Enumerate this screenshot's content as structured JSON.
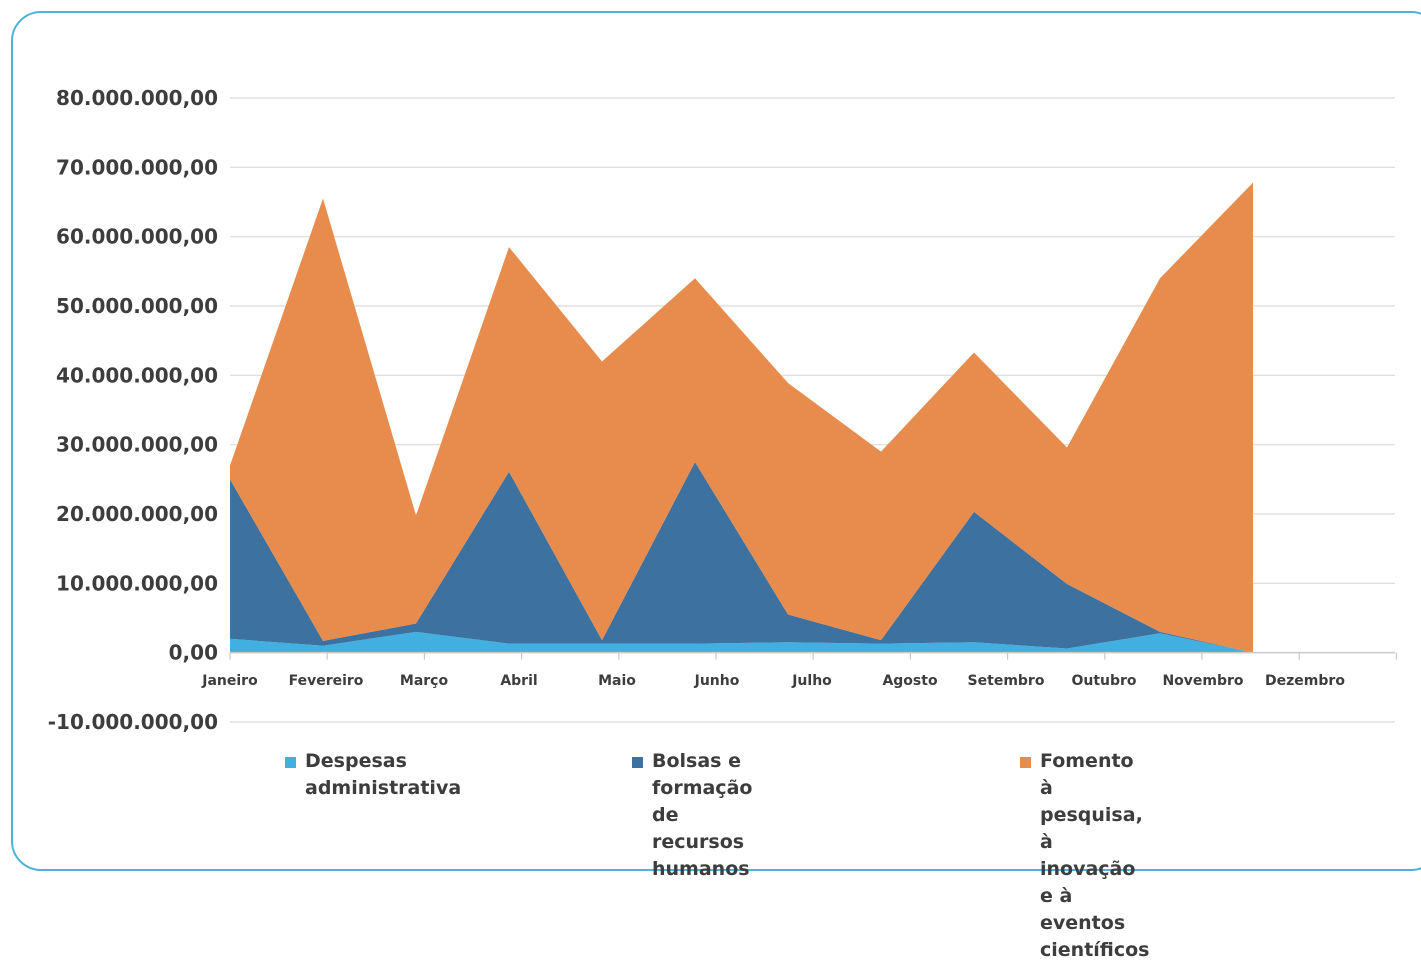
{
  "chart_data": {
    "type": "area",
    "stacked": true,
    "categories": [
      "Janeiro",
      "Fevereiro",
      "Março",
      "Abril",
      "Maio",
      "Junho",
      "Julho",
      "Agosto",
      "Setembro",
      "Outubro",
      "Novembro",
      "Dezembro"
    ],
    "y_ticks": [
      "80.000.000,00",
      "70.000.000,00",
      "60.000.000,00",
      "50.000.000,00",
      "40.000.000,00",
      "30.000.000,00",
      "20.000.000,00",
      "10.000.000,00",
      "0,00",
      "-10.000.000,00"
    ],
    "ylim": [
      -10000000,
      80000000
    ],
    "grid": true,
    "legend_position": "bottom",
    "series": [
      {
        "name": "Despesas administrativa",
        "color": "#41afe0",
        "values": [
          2000000,
          1000000,
          3000000,
          1300000,
          1300000,
          1300000,
          1500000,
          1300000,
          1500000,
          600000,
          2800000,
          0
        ]
      },
      {
        "name": "Bolsas e formação\nde recursos humanos",
        "color": "#3c71a0",
        "values": [
          23000000,
          700000,
          1200000,
          24800000,
          500000,
          26200000,
          4000000,
          500000,
          18800000,
          9300000,
          200000,
          0
        ]
      },
      {
        "name": "Fomento à pesquisa,\nà inovação e à eventos\ncientíficos",
        "color": "#e88c4d",
        "values": [
          2000000,
          63800000,
          15600000,
          32400000,
          40200000,
          26500000,
          33400000,
          27200000,
          23000000,
          19700000,
          51000000,
          67800000
        ]
      }
    ]
  }
}
